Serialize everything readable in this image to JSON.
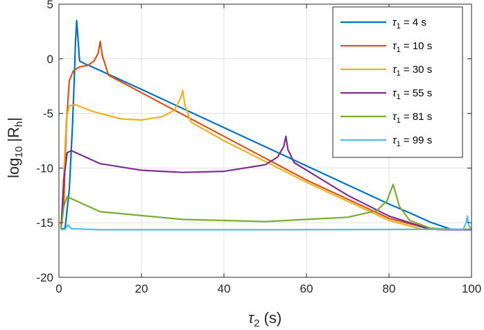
{
  "chart_data": {
    "type": "line",
    "xlabel": {
      "main": "τ",
      "sub": "2",
      "suffix": " (s)"
    },
    "ylabel": {
      "pre": "log",
      "sub": "10",
      "mid": " |R",
      "sub2": "h",
      "post": "|"
    },
    "xlim": [
      0,
      100
    ],
    "ylim": [
      -20,
      5
    ],
    "xticks": [
      "0",
      "20",
      "40",
      "60",
      "80",
      "100"
    ],
    "yticks": [
      "5",
      "0",
      "-5",
      "-10",
      "-15",
      "-20"
    ],
    "grid": true,
    "legend_position": "top-right",
    "series": [
      {
        "name": "4 s",
        "tau1": 4,
        "color": "#0072BD",
        "x": [
          0.5,
          1.5,
          2.5,
          3.3,
          3.8,
          4.0,
          4.3,
          5.0,
          6.5,
          7.5,
          20,
          40,
          60,
          80,
          85,
          90,
          95,
          97.5,
          100
        ],
        "y": [
          -15.6,
          -15.5,
          -12.0,
          -6.0,
          -1.0,
          1.5,
          3.5,
          -0.2,
          -0.5,
          -0.65,
          -2.8,
          -6.3,
          -9.8,
          -13.3,
          -14.1,
          -14.95,
          -15.6,
          -15.65,
          -15.65
        ]
      },
      {
        "name": "10 s",
        "tau1": 10,
        "color": "#D95319",
        "x": [
          0.5,
          1.2,
          1.8,
          2.5,
          3.5,
          5.0,
          7.0,
          8.5,
          9.5,
          10.0,
          10.5,
          12.0,
          20,
          40,
          60,
          80,
          90,
          93,
          100
        ],
        "y": [
          -15.6,
          -13.0,
          -6.0,
          -2.0,
          -1.1,
          -0.75,
          -0.6,
          -0.2,
          0.5,
          1.6,
          0.3,
          -1.5,
          -3.1,
          -7.1,
          -11.1,
          -14.6,
          -15.6,
          -15.65,
          -15.65
        ]
      },
      {
        "name": "30 s",
        "tau1": 30,
        "color": "#EDB120",
        "x": [
          0.5,
          1.0,
          1.8,
          2.5,
          4.0,
          8,
          15,
          20,
          25,
          28,
          29.5,
          30.0,
          30.5,
          32,
          40,
          60,
          80,
          88,
          100
        ],
        "y": [
          -15.6,
          -12.0,
          -5.5,
          -4.3,
          -4.2,
          -4.8,
          -5.5,
          -5.6,
          -5.3,
          -4.7,
          -3.6,
          -2.9,
          -4.2,
          -5.8,
          -7.5,
          -11.3,
          -14.8,
          -15.6,
          -15.65
        ]
      },
      {
        "name": "55 s",
        "tau1": 55,
        "color": "#7E2F8E",
        "x": [
          0.5,
          1.2,
          2.0,
          3.0,
          10,
          20,
          30,
          40,
          50,
          53,
          54.5,
          55.0,
          55.5,
          57,
          70,
          80,
          90,
          95,
          100
        ],
        "y": [
          -15.6,
          -11.0,
          -8.6,
          -8.4,
          -9.6,
          -10.2,
          -10.4,
          -10.3,
          -9.7,
          -9.0,
          -8.0,
          -7.1,
          -8.3,
          -9.5,
          -12.5,
          -14.4,
          -15.6,
          -15.65,
          -15.65
        ]
      },
      {
        "name": "81 s",
        "tau1": 81,
        "color": "#77AC30",
        "x": [
          0.5,
          1.2,
          2.0,
          3.0,
          10,
          30,
          50,
          70,
          77,
          79.5,
          81.0,
          82.5,
          85,
          90,
          95,
          100
        ],
        "y": [
          -15.6,
          -13.5,
          -12.6,
          -12.8,
          -14.0,
          -14.7,
          -14.9,
          -14.5,
          -13.9,
          -13.0,
          -11.5,
          -13.5,
          -14.8,
          -15.5,
          -15.6,
          -15.6
        ]
      },
      {
        "name": "99 s",
        "tau1": 99,
        "color": "#4DBEEE",
        "x": [
          0.5,
          1.5,
          2.2,
          3.0,
          10,
          50,
          98.0,
          98.7,
          99.0,
          99.3,
          100
        ],
        "y": [
          -15.65,
          -15.6,
          -15.2,
          -15.55,
          -15.65,
          -15.65,
          -15.6,
          -15.0,
          -14.4,
          -15.2,
          -15.6
        ]
      }
    ]
  }
}
